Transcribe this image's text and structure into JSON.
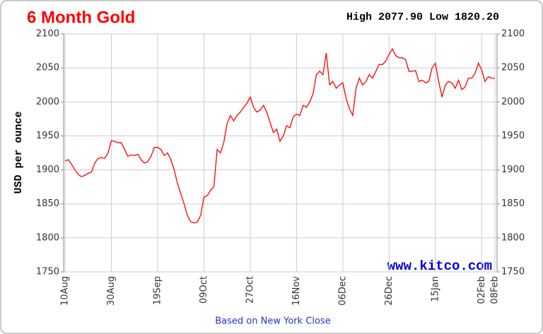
{
  "chart_data": {
    "type": "line",
    "title": "6 Month Gold",
    "subtitle": "High 2077.90 Low 1820.20",
    "y_label": "USD per ounce",
    "watermark": "www.kitco.com",
    "footer": "Based on New York Close",
    "color": "#ff0000",
    "grid": true,
    "ylim": [
      1750,
      2100
    ],
    "yticks": [
      1750,
      1800,
      1850,
      1900,
      1950,
      2000,
      2050,
      2100
    ],
    "categories": [
      "10Aug",
      null,
      null,
      null,
      null,
      null,
      null,
      null,
      null,
      null,
      null,
      null,
      null,
      null,
      "30Aug",
      null,
      null,
      null,
      null,
      null,
      null,
      null,
      null,
      null,
      null,
      null,
      null,
      null,
      "19Sep",
      null,
      null,
      null,
      null,
      null,
      null,
      null,
      null,
      null,
      null,
      null,
      null,
      null,
      "09Oct",
      null,
      null,
      null,
      null,
      null,
      null,
      null,
      null,
      null,
      null,
      null,
      null,
      null,
      "27Oct",
      null,
      null,
      null,
      null,
      null,
      null,
      null,
      null,
      null,
      null,
      null,
      null,
      null,
      "16Nov",
      null,
      null,
      null,
      null,
      null,
      null,
      null,
      null,
      null,
      null,
      null,
      null,
      null,
      "06Dec",
      null,
      null,
      null,
      null,
      null,
      null,
      null,
      null,
      null,
      null,
      null,
      null,
      null,
      "26Dec",
      null,
      null,
      null,
      null,
      null,
      null,
      null,
      null,
      null,
      null,
      null,
      null,
      null,
      "15Jan",
      null,
      null,
      null,
      null,
      null,
      null,
      null,
      null,
      null,
      null,
      null,
      null,
      null,
      "02Feb",
      null,
      null,
      null,
      "08Feb"
    ],
    "values": [
      1913,
      1915,
      1908,
      1900,
      1893,
      1890,
      1892,
      1895,
      1897,
      1910,
      1917,
      1918,
      1917,
      1925,
      1943,
      1942,
      1940,
      1940,
      1930,
      1920,
      1922,
      1921,
      1923,
      1915,
      1910,
      1912,
      1920,
      1933,
      1933,
      1930,
      1921,
      1925,
      1915,
      1900,
      1880,
      1865,
      1850,
      1833,
      1824,
      1822,
      1823,
      1833,
      1860,
      1862,
      1870,
      1875,
      1930,
      1925,
      1940,
      1968,
      1980,
      1972,
      1980,
      1985,
      1992,
      1998,
      2007,
      1992,
      1985,
      1988,
      1995,
      1985,
      1970,
      1955,
      1960,
      1942,
      1950,
      1965,
      1962,
      1978,
      1982,
      1980,
      1995,
      1992,
      2000,
      2012,
      2040,
      2045,
      2040,
      2072,
      2025,
      2030,
      2020,
      2025,
      2028,
      2005,
      1990,
      1980,
      2020,
      2035,
      2025,
      2030,
      2040,
      2035,
      2045,
      2055,
      2055,
      2060,
      2070,
      2078,
      2068,
      2065,
      2065,
      2062,
      2045,
      2045,
      2046,
      2030,
      2032,
      2028,
      2030,
      2050,
      2057,
      2030,
      2007,
      2025,
      2030,
      2028,
      2020,
      2032,
      2018,
      2022,
      2035,
      2035,
      2042,
      2057,
      2047,
      2030,
      2037,
      2035,
      2035
    ]
  }
}
